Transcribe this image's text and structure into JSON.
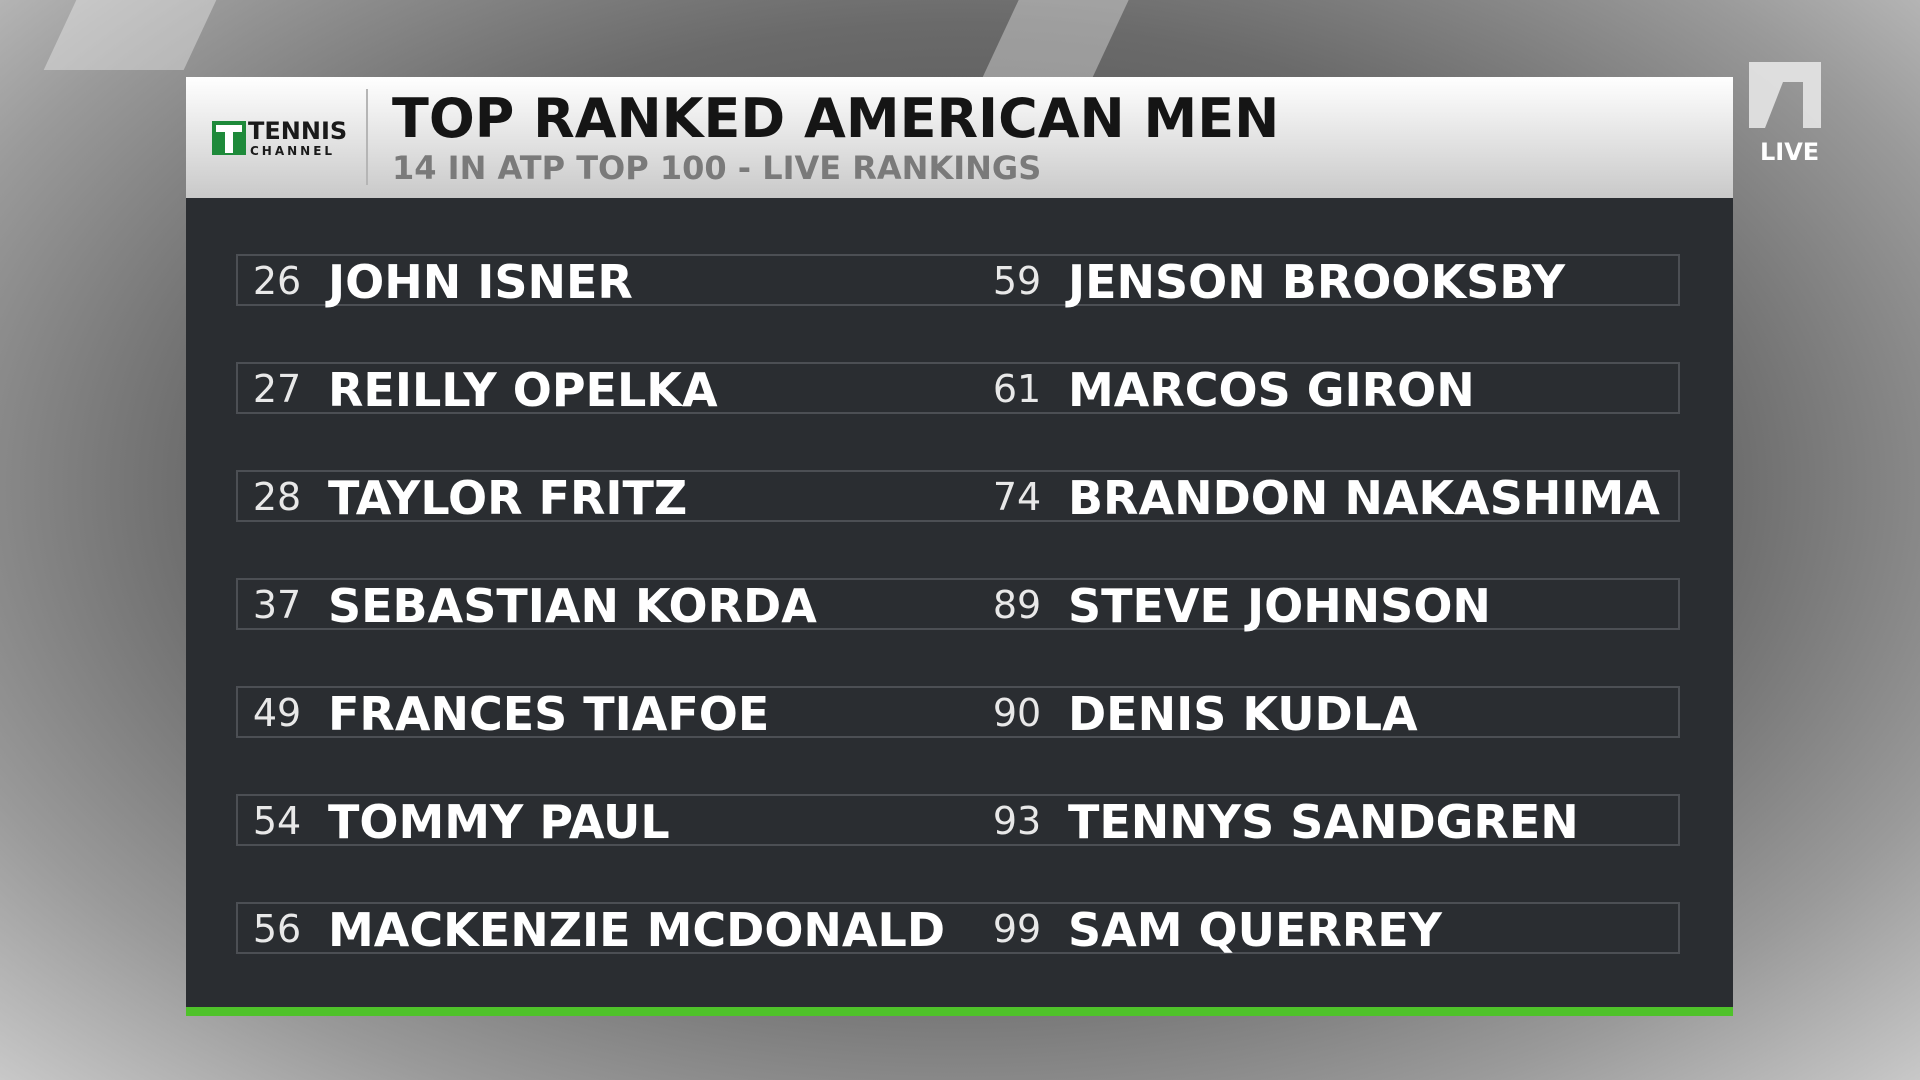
{
  "logo": {
    "name": "TENNIS",
    "sub": "CHANNEL"
  },
  "header": {
    "title": "TOP RANKED AMERICAN MEN",
    "subtitle": "14 IN ATP TOP 100 - LIVE RANKINGS"
  },
  "live": "LIVE",
  "rows": [
    [
      {
        "rank": 26,
        "name": "JOHN ISNER"
      },
      {
        "rank": 59,
        "name": "JENSON BROOKSBY"
      }
    ],
    [
      {
        "rank": 27,
        "name": "REILLY OPELKA"
      },
      {
        "rank": 61,
        "name": "MARCOS GIRON"
      }
    ],
    [
      {
        "rank": 28,
        "name": "TAYLOR FRITZ"
      },
      {
        "rank": 74,
        "name": "BRANDON NAKASHIMA"
      }
    ],
    [
      {
        "rank": 37,
        "name": "SEBASTIAN KORDA"
      },
      {
        "rank": 89,
        "name": "STEVE JOHNSON"
      }
    ],
    [
      {
        "rank": 49,
        "name": "FRANCES TIAFOE"
      },
      {
        "rank": 90,
        "name": "DENIS KUDLA"
      }
    ],
    [
      {
        "rank": 54,
        "name": "TOMMY PAUL"
      },
      {
        "rank": 93,
        "name": "TENNYS SANDGREN"
      }
    ],
    [
      {
        "rank": 56,
        "name": "MACKENZIE MCDONALD"
      },
      {
        "rank": 99,
        "name": "SAM QUERREY"
      }
    ]
  ]
}
